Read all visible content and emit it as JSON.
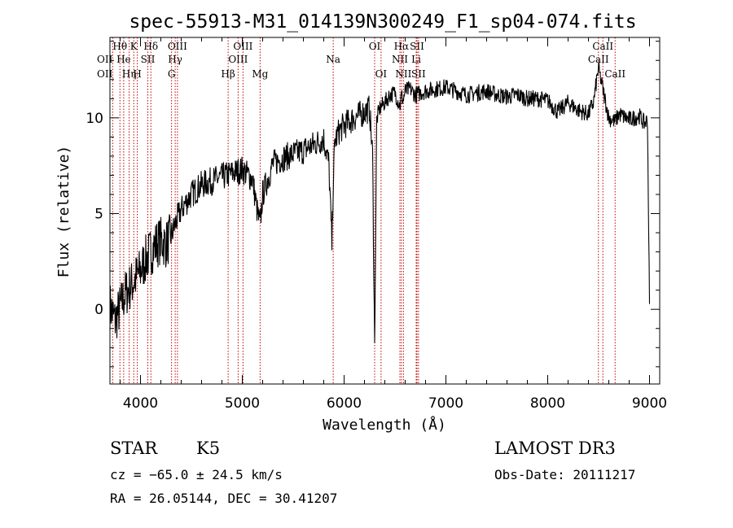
{
  "chart_data": {
    "type": "line",
    "title": "spec-55913-M31_014139N300249_F1_sp04-074.fits",
    "xlabel": "Wavelength (Å)",
    "ylabel": "Flux (relative)",
    "xlim": [
      3700,
      9100
    ],
    "ylim": [
      -3.9,
      14.2
    ],
    "x_ticks": [
      4000,
      5000,
      6000,
      7000,
      8000,
      9000
    ],
    "y_ticks": [
      0,
      5,
      10
    ],
    "series": [
      {
        "name": "spectrum",
        "x": [
          3700,
          3750,
          3800,
          3850,
          3900,
          3950,
          4000,
          4050,
          4100,
          4150,
          4200,
          4250,
          4300,
          4350,
          4400,
          4450,
          4500,
          4600,
          4700,
          4800,
          4900,
          5000,
          5100,
          5150,
          5175,
          5200,
          5300,
          5400,
          5500,
          5600,
          5700,
          5800,
          5850,
          5880,
          5893,
          5910,
          5950,
          6000,
          6100,
          6200,
          6250,
          6280,
          6300,
          6320,
          6350,
          6400,
          6450,
          6500,
          6550,
          6563,
          6580,
          6600,
          6650,
          6700,
          6750,
          6800,
          6900,
          7000,
          7100,
          7200,
          7300,
          7400,
          7500,
          7600,
          7700,
          7800,
          7900,
          8000,
          8100,
          8200,
          8300,
          8400,
          8450,
          8498,
          8542,
          8600,
          8662,
          8700,
          8800,
          8900,
          8950,
          8980,
          9000
        ],
        "y": [
          0.2,
          -0.6,
          0.1,
          0.8,
          1.2,
          1.6,
          2.0,
          2.6,
          3.0,
          3.4,
          3.6,
          3.4,
          3.8,
          4.6,
          5.2,
          5.6,
          6.0,
          6.5,
          6.7,
          6.9,
          7.1,
          7.3,
          6.8,
          5.0,
          4.4,
          6.0,
          7.6,
          7.9,
          8.1,
          8.3,
          8.6,
          8.9,
          7.6,
          3.4,
          6.6,
          8.8,
          9.3,
          9.6,
          10.0,
          10.3,
          10.5,
          8.0,
          -2.0,
          9.9,
          10.5,
          10.8,
          11.2,
          11.3,
          10.6,
          11.2,
          10.9,
          11.4,
          11.5,
          11.2,
          11.3,
          11.4,
          11.5,
          11.6,
          11.4,
          11.2,
          11.3,
          11.4,
          11.2,
          11.1,
          11.2,
          11.0,
          11.0,
          10.9,
          10.3,
          10.8,
          10.4,
          10.2,
          10.8,
          12.6,
          11.5,
          10.0,
          9.8,
          10.2,
          9.9,
          10.1,
          9.7,
          9.9,
          0.2
        ]
      }
    ],
    "line_markers": [
      {
        "label": "OII",
        "x": 3727,
        "row": 2,
        "align": "end"
      },
      {
        "label": "OII",
        "x": 3727,
        "row": 3,
        "align": "end"
      },
      {
        "label": "Hθ",
        "x": 3798,
        "row": 1,
        "align": "middle"
      },
      {
        "label": "He",
        "x": 3835,
        "row": 2,
        "align": "middle"
      },
      {
        "label": "Hη",
        "x": 3889,
        "row": 3,
        "align": "middle"
      },
      {
        "label": "K",
        "x": 3934,
        "row": 1,
        "align": "middle"
      },
      {
        "label": "H",
        "x": 3969,
        "row": 3,
        "align": "middle"
      },
      {
        "label": "SII",
        "x": 4072,
        "row": 2,
        "align": "middle"
      },
      {
        "label": "Hδ",
        "x": 4102,
        "row": 1,
        "align": "middle"
      },
      {
        "label": "G",
        "x": 4305,
        "row": 3,
        "align": "middle"
      },
      {
        "label": "OIII",
        "x": 4363,
        "row": 1,
        "align": "middle"
      },
      {
        "label": "Hγ",
        "x": 4341,
        "row": 2,
        "align": "middle"
      },
      {
        "label": "Hβ",
        "x": 4861,
        "row": 3,
        "align": "middle"
      },
      {
        "label": "OIII",
        "x": 4959,
        "row": 2,
        "align": "middle"
      },
      {
        "label": "OIII",
        "x": 5007,
        "row": 1,
        "align": "middle"
      },
      {
        "label": "Mg",
        "x": 5175,
        "row": 3,
        "align": "middle"
      },
      {
        "label": "Na",
        "x": 5893,
        "row": 2,
        "align": "middle"
      },
      {
        "label": "OI",
        "x": 6300,
        "row": 1,
        "align": "middle"
      },
      {
        "label": "OI",
        "x": 6363,
        "row": 3,
        "align": "middle"
      },
      {
        "label": "NII",
        "x": 6548,
        "row": 2,
        "align": "middle"
      },
      {
        "label": "Hα",
        "x": 6563,
        "row": 1,
        "align": "middle"
      },
      {
        "label": "NII",
        "x": 6583,
        "row": 3,
        "align": "middle"
      },
      {
        "label": "Li",
        "x": 6708,
        "row": 2,
        "align": "middle"
      },
      {
        "label": "SII",
        "x": 6716,
        "row": 1,
        "align": "middle"
      },
      {
        "label": "SII",
        "x": 6731,
        "row": 3,
        "align": "middle"
      },
      {
        "label": "CaII",
        "x": 8498,
        "row": 2,
        "align": "middle"
      },
      {
        "label": "CaII",
        "x": 8542,
        "row": 1,
        "align": "middle"
      },
      {
        "label": "CaII",
        "x": 8662,
        "row": 3,
        "align": "middle"
      }
    ]
  },
  "info": {
    "object_class": "STAR",
    "subclass": "K5",
    "survey": "LAMOST DR3",
    "cz": "cz = −65.0 ± 24.5 km/s",
    "obs_date": "Obs-Date: 20111217",
    "coords": "RA =  26.05144, DEC =  30.41207"
  },
  "colors": {
    "marker_line": "#c00000",
    "spectrum": "#000000",
    "axis": "#000000"
  }
}
